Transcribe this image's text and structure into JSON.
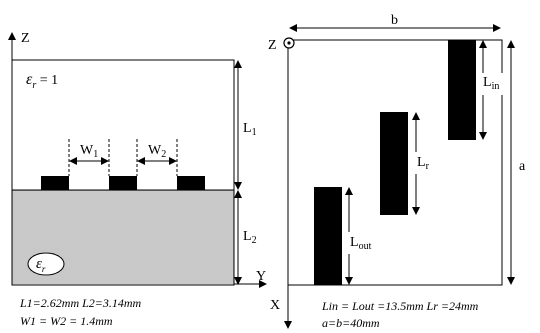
{
  "left_view": {
    "axis_z": "Z",
    "axis_y": "Y",
    "eps_upper": "ε",
    "eps_upper_sub": "r",
    "eps_upper_val": " = 1",
    "eps_lower": "ε",
    "eps_lower_sub": "r",
    "dim_L1": "L",
    "dim_L1_sub": "1",
    "dim_L2": "L",
    "dim_L2_sub": "2",
    "dim_W1": "W",
    "dim_W1_sub": "1",
    "dim_W2": "W",
    "dim_W2_sub": "2",
    "caption_line1": "L1=2.62mm  L2=3.14mm",
    "caption_line2": "W1 = W2 = 1.4mm"
  },
  "right_view": {
    "axis_z": "Z",
    "axis_x": "X",
    "dim_b": "b",
    "dim_a": "a",
    "dim_Lin": "L",
    "dim_Lin_sub": "in",
    "dim_Lr": "L",
    "dim_Lr_sub": "r",
    "dim_Lout": "L",
    "dim_Lout_sub": "out",
    "caption_line1": "Lin = Lout =13.5mm   Lr =24mm",
    "caption_line2": "a=b=40mm"
  }
}
